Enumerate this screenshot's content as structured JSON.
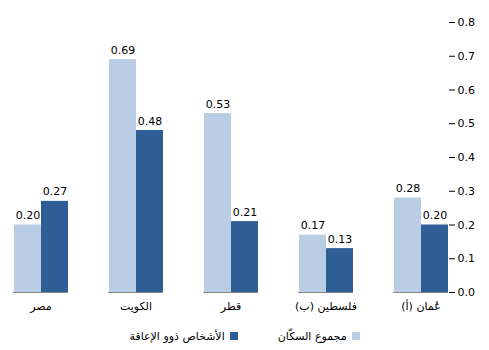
{
  "chart_data": {
    "type": "bar",
    "categories": [
      "مصر",
      "الكويت",
      "قطر",
      "فلسطين (ب)",
      "عُمان (أ)"
    ],
    "series": [
      {
        "name": "مجموع السكّان",
        "color": "#b9cde5",
        "values": [
          0.2,
          0.69,
          0.53,
          0.17,
          0.28
        ],
        "value_labels": [
          "0.20",
          "0.69",
          "0.53",
          "0.17",
          "0.28"
        ]
      },
      {
        "name": "الأشخاص ذوو الإعاقة",
        "color": "#2f5d95",
        "values": [
          0.27,
          0.48,
          0.21,
          0.13,
          0.2
        ],
        "value_labels": [
          "0.27",
          "0.48",
          "0.21",
          "0.13",
          "0.20"
        ]
      }
    ],
    "ylim": [
      0,
      0.8
    ],
    "yticks": [
      {
        "value": 0,
        "label": "0.0"
      },
      {
        "value": 0.1,
        "label": "0.1"
      },
      {
        "value": 0.2,
        "label": "0.2"
      },
      {
        "value": 0.3,
        "label": "0.3"
      },
      {
        "value": 0.4,
        "label": "0.4"
      },
      {
        "value": 0.5,
        "label": "0.5"
      },
      {
        "value": 0.6,
        "label": "0.6"
      },
      {
        "value": 0.7,
        "label": "0.7"
      },
      {
        "value": 0.8,
        "label": "0.8"
      }
    ],
    "grid": false,
    "data_labels": true,
    "legend": "bottom"
  }
}
